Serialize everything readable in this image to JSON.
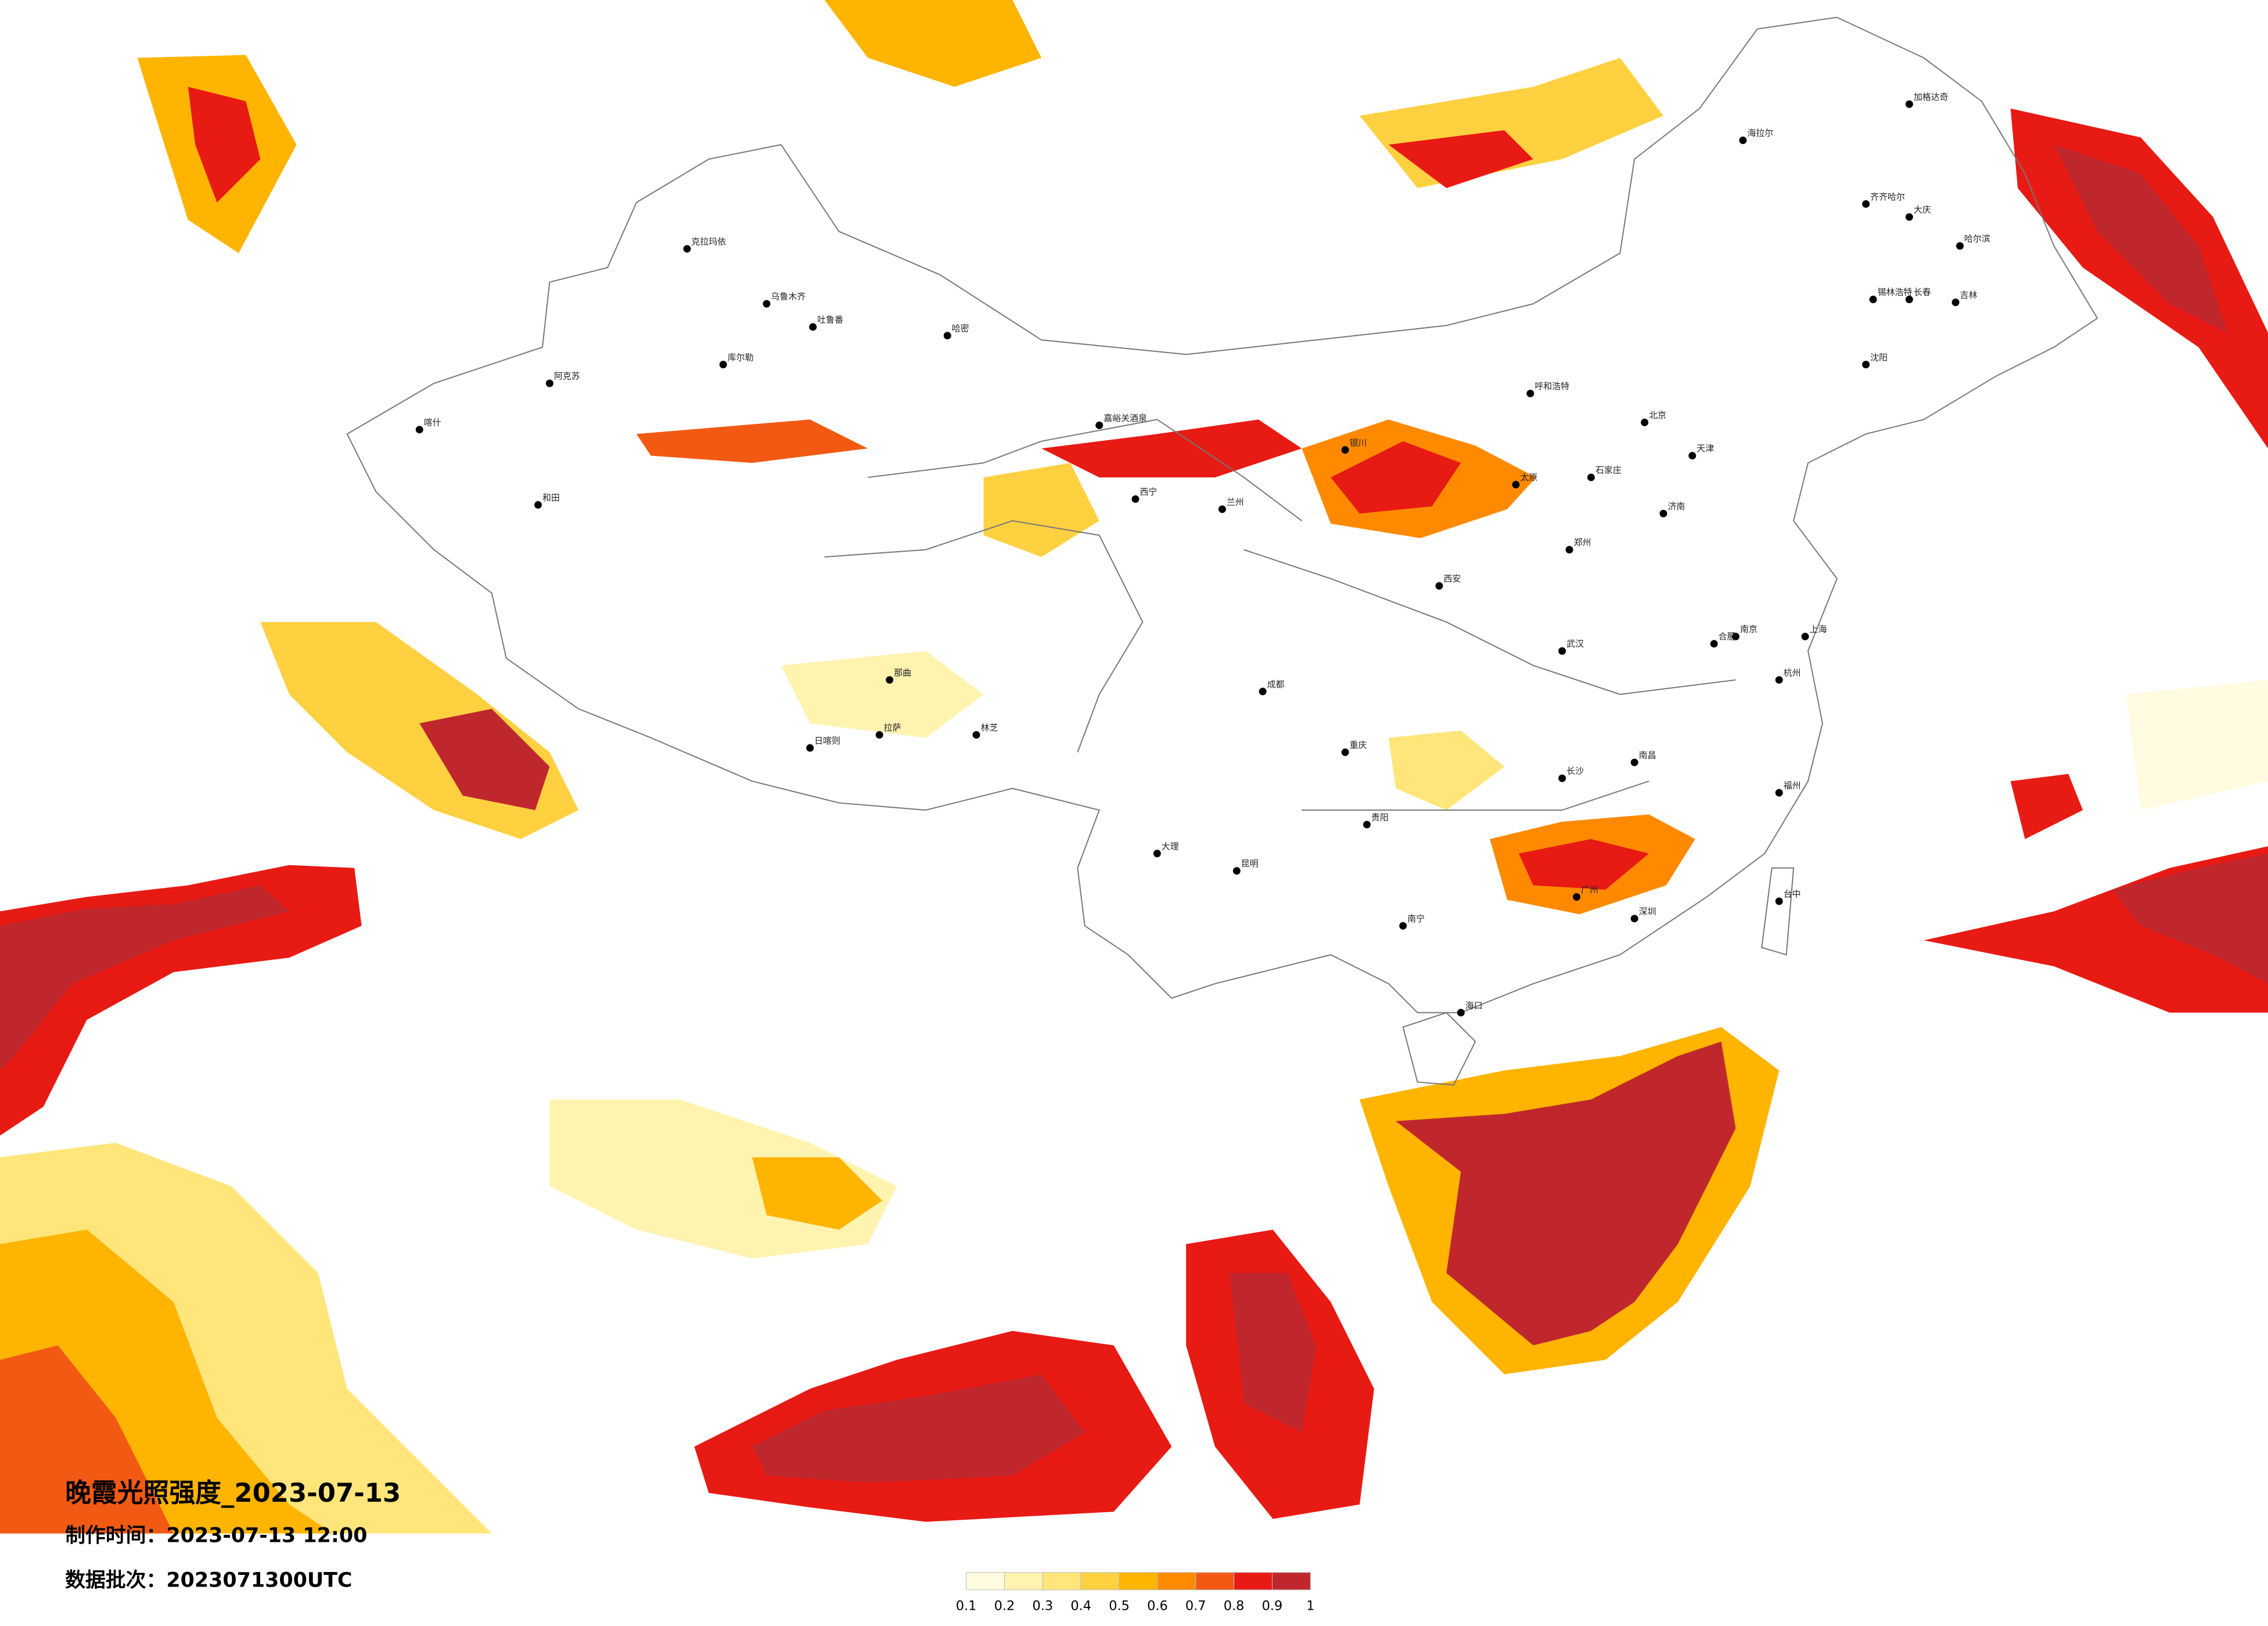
{
  "header": {
    "title": "晚霞光照强度_2023-07-13",
    "made_time": "制作时间：2023-07-13 12:00",
    "batch": "数据批次：2023071300UTC"
  },
  "colorbar": {
    "ticks": [
      0.1,
      0.2,
      0.3,
      0.4,
      0.5,
      0.6,
      0.7,
      0.8,
      0.9,
      1
    ],
    "colors": [
      "#fffbe0",
      "#fff3b0",
      "#ffe57a",
      "#ffd040",
      "#ffb400",
      "#ff8a00",
      "#f25a14",
      "#e81a14",
      "#c0272d"
    ]
  },
  "cities": [
    "克拉玛依",
    "乌鲁木齐",
    "吐鲁番",
    "哈密",
    "库尔勒",
    "阿克苏",
    "喀什",
    "和田",
    "嘉峪关酒泉",
    "日喀则",
    "拉萨",
    "林芝",
    "那曲",
    "呼和浩特",
    "锡林浩特",
    "海拉尔",
    "加格达奇",
    "齐齐哈尔",
    "大庆",
    "哈尔滨",
    "长春",
    "吉林",
    "沈阳",
    "北京",
    "天津",
    "石家庄",
    "太原",
    "银川",
    "兰州",
    "西宁",
    "西安",
    "郑州",
    "济南",
    "南京",
    "上海",
    "杭州",
    "合肥",
    "武汉",
    "长沙",
    "南昌",
    "福州",
    "广州",
    "深圳",
    "南宁",
    "海口",
    "贵阳",
    "昆明",
    "成都",
    "重庆",
    "台中",
    "大理"
  ]
}
